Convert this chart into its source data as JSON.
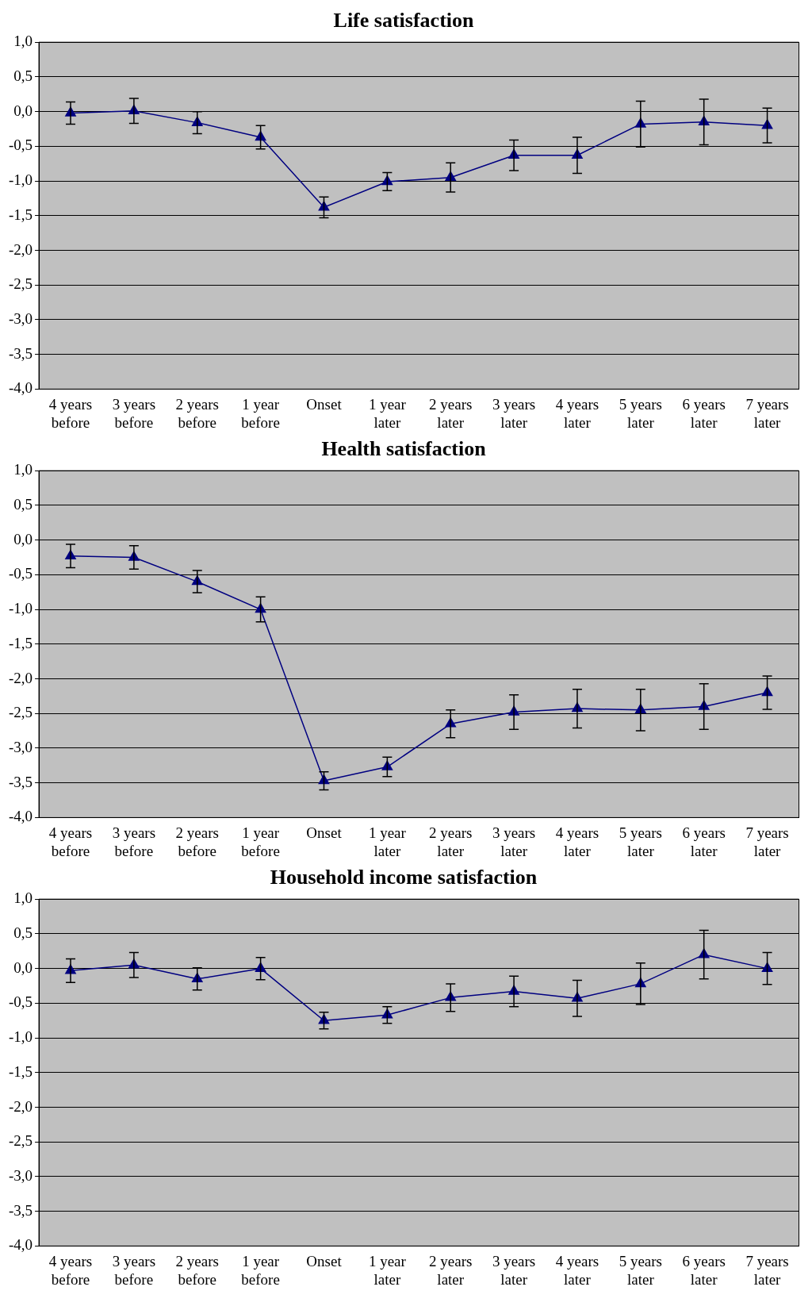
{
  "chart_data": [
    {
      "type": "line",
      "title": "Life satisfaction",
      "categories": [
        "4 years before",
        "3 years before",
        "2 years before",
        "1 year before",
        "Onset",
        "1 year later",
        "2 years later",
        "3 years later",
        "4 years later",
        "5 years later",
        "6 years later",
        "7 years later"
      ],
      "series": [
        {
          "color": "#000080",
          "values": [
            -0.02,
            0.01,
            -0.16,
            -0.37,
            -1.38,
            -1.01,
            -0.95,
            -0.63,
            -0.63,
            -0.18,
            -0.15,
            -0.2
          ],
          "errors": [
            0.16,
            0.18,
            0.16,
            0.17,
            0.15,
            0.13,
            0.21,
            0.22,
            0.26,
            0.33,
            0.33,
            0.25
          ]
        }
      ],
      "ylim": [
        -4,
        1
      ],
      "yticks": [
        {
          "value": -4,
          "label": "-4,0"
        },
        {
          "value": -3.5,
          "label": "-3,5"
        },
        {
          "value": -3,
          "label": "-3,0"
        },
        {
          "value": -2.5,
          "label": "-2,5"
        },
        {
          "value": -2,
          "label": "-2,0"
        },
        {
          "value": -1.5,
          "label": "-1,5"
        },
        {
          "value": -1,
          "label": "-1,0"
        },
        {
          "value": -0.5,
          "label": "-0,5"
        },
        {
          "value": 0,
          "label": "0,0"
        },
        {
          "value": 0.5,
          "label": "0,5"
        },
        {
          "value": 1,
          "label": "1,0"
        }
      ],
      "grid": "y",
      "marker": "triangle",
      "legend": false
    },
    {
      "type": "line",
      "title": "Health satisfaction",
      "categories": [
        "4 years before",
        "3 years before",
        "2 years before",
        "1 year before",
        "Onset",
        "1 year later",
        "2 years later",
        "3 years later",
        "4 years later",
        "5 years later",
        "6 years later",
        "7 years later"
      ],
      "series": [
        {
          "color": "#000080",
          "values": [
            -0.23,
            -0.25,
            -0.6,
            -1.0,
            -3.47,
            -3.27,
            -2.65,
            -2.48,
            -2.43,
            -2.45,
            -2.4,
            -2.2
          ],
          "errors": [
            0.17,
            0.17,
            0.16,
            0.18,
            0.13,
            0.14,
            0.2,
            0.25,
            0.28,
            0.3,
            0.33,
            0.24
          ]
        }
      ],
      "ylim": [
        -4,
        1
      ],
      "yticks": [
        {
          "value": -4,
          "label": "-4,0"
        },
        {
          "value": -3.5,
          "label": "-3,5"
        },
        {
          "value": -3,
          "label": "-3,0"
        },
        {
          "value": -2.5,
          "label": "-2,5"
        },
        {
          "value": -2,
          "label": "-2,0"
        },
        {
          "value": -1.5,
          "label": "-1,5"
        },
        {
          "value": -1,
          "label": "-1,0"
        },
        {
          "value": -0.5,
          "label": "-0,5"
        },
        {
          "value": 0,
          "label": "0,0"
        },
        {
          "value": 0.5,
          "label": "0,5"
        },
        {
          "value": 1,
          "label": "1,0"
        }
      ],
      "grid": "y",
      "marker": "triangle",
      "legend": false
    },
    {
      "type": "line",
      "title": "Household income satisfaction",
      "categories": [
        "4 years before",
        "3 years before",
        "2 years before",
        "1 year before",
        "Onset",
        "1 year later",
        "2 years later",
        "3 years later",
        "4 years later",
        "5 years later",
        "6 years later",
        "7 years later"
      ],
      "series": [
        {
          "color": "#000080",
          "values": [
            -0.03,
            0.05,
            -0.15,
            0.0,
            -0.75,
            -0.67,
            -0.42,
            -0.33,
            -0.43,
            -0.22,
            0.2,
            0.0
          ],
          "errors": [
            0.17,
            0.18,
            0.16,
            0.16,
            0.12,
            0.12,
            0.2,
            0.22,
            0.26,
            0.3,
            0.35,
            0.23
          ]
        }
      ],
      "ylim": [
        -4,
        1
      ],
      "yticks": [
        {
          "value": -4,
          "label": "-4,0"
        },
        {
          "value": -3.5,
          "label": "-3,5"
        },
        {
          "value": -3,
          "label": "-3,0"
        },
        {
          "value": -2.5,
          "label": "-2,5"
        },
        {
          "value": -2,
          "label": "-2,0"
        },
        {
          "value": -1.5,
          "label": "-1,5"
        },
        {
          "value": -1,
          "label": "-1,0"
        },
        {
          "value": -0.5,
          "label": "-0,5"
        },
        {
          "value": 0,
          "label": "0,0"
        },
        {
          "value": 0.5,
          "label": "0,5"
        },
        {
          "value": 1,
          "label": "1,0"
        }
      ],
      "grid": "y",
      "marker": "triangle",
      "legend": false
    }
  ]
}
